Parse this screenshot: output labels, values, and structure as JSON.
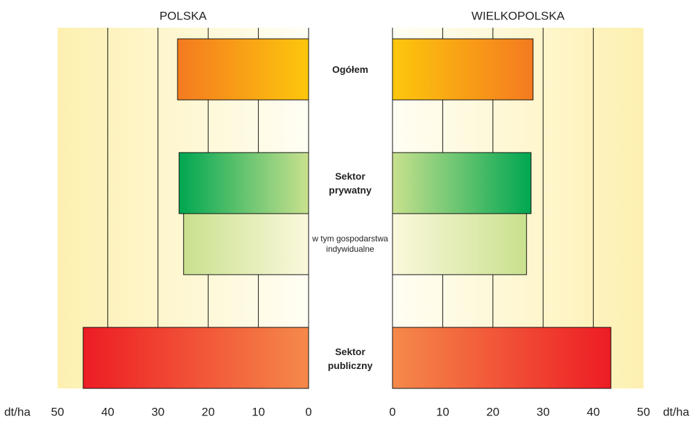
{
  "chart_data": [
    {
      "type": "bar",
      "orientation": "horizontal",
      "direction": "reversed",
      "title": "POLSKA",
      "categories": [
        "Ogółem",
        "Sektor prywatny",
        "w tym gospodarstwa indywidualne",
        "Sektor publiczny"
      ],
      "values": [
        26.1,
        25.8,
        24.9,
        44.9
      ],
      "colors": [
        [
          "#fdc70c",
          "#f47a20"
        ],
        [
          "#c9e18e",
          "#00a651"
        ],
        [
          "#fbf8dc",
          "#c9e18e"
        ],
        [
          "#f58a4a",
          "#ed1c24"
        ]
      ],
      "xlim": [
        0,
        50
      ],
      "xticks": [
        50,
        40,
        30,
        20,
        10,
        0
      ],
      "x_label": "dt/ha",
      "grid": true
    },
    {
      "type": "bar",
      "orientation": "horizontal",
      "direction": "normal",
      "title": "WIELKOPOLSKA",
      "values": [
        28.0,
        27.6,
        26.7,
        43.5
      ],
      "colors": [
        [
          "#fdc70c",
          "#f47a20"
        ],
        [
          "#c9e18e",
          "#00a651"
        ],
        [
          "#fbf8dc",
          "#c9e18e"
        ],
        [
          "#f58a4a",
          "#ed1c24"
        ]
      ],
      "xlim": [
        0,
        50
      ],
      "xticks": [
        0,
        10,
        20,
        30,
        40,
        50
      ],
      "x_label": "dt/ha",
      "grid": true
    }
  ]
}
